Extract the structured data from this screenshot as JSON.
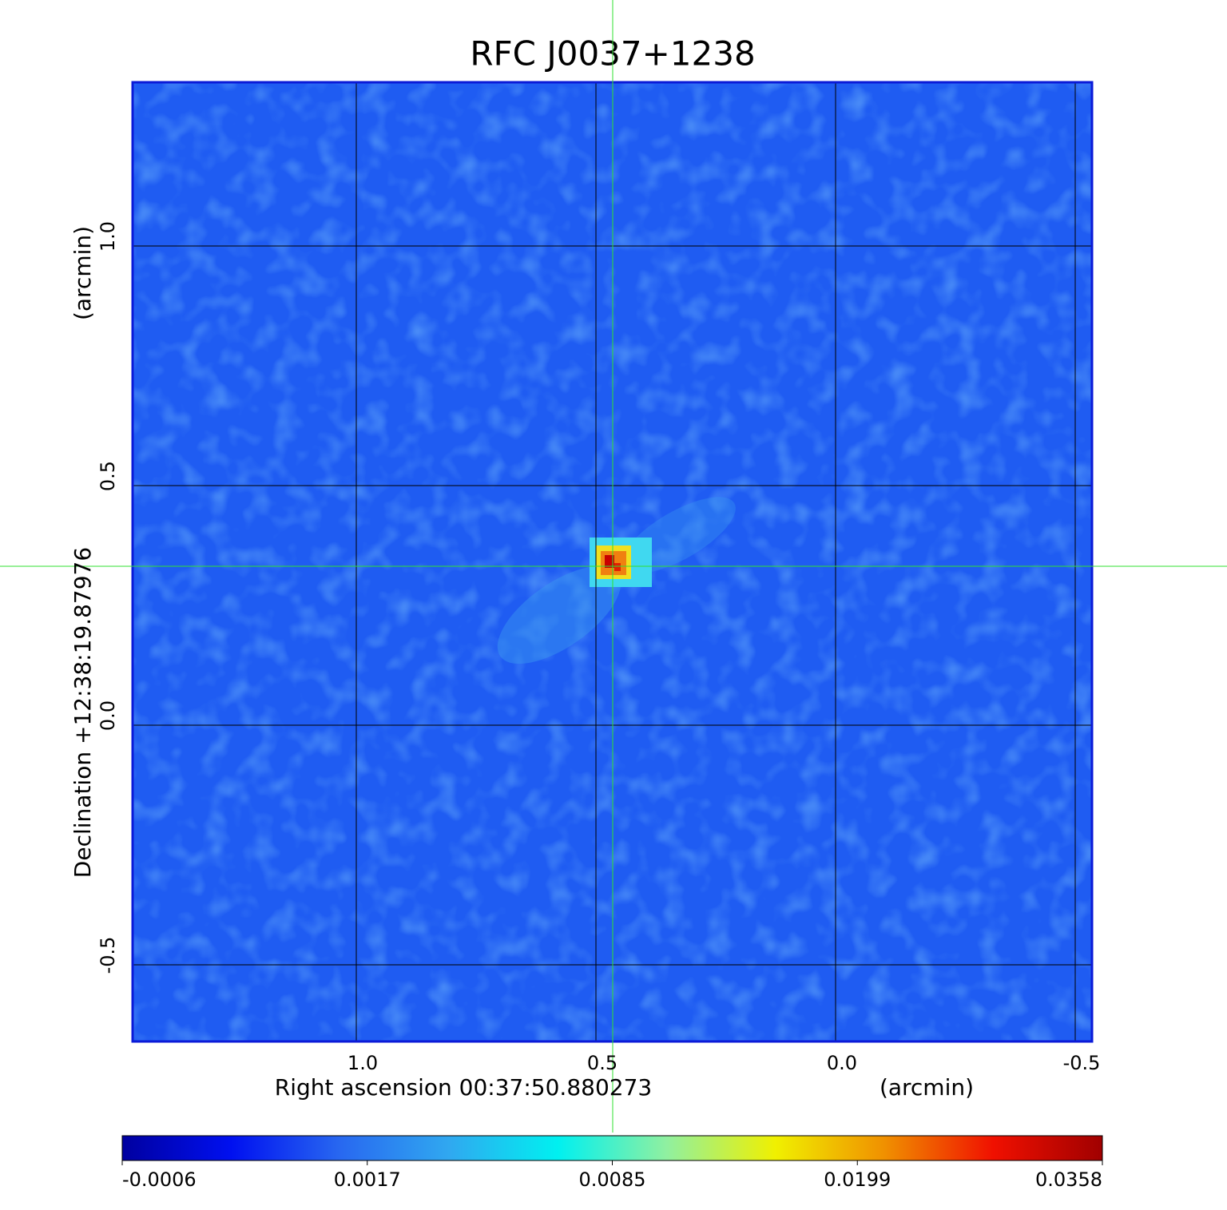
{
  "chart_data": {
    "type": "image",
    "title": "RFC J0037+1238",
    "title_color": "#1010d0",
    "xlabel": "Right ascension  00:37:50.880273",
    "xunit": "(arcmin)",
    "ylabel": "Declination  +12:38:19.87976",
    "yunit": "(arcmin)",
    "xlim": [
      1.4667,
      -0.535
    ],
    "ylim": [
      -0.66,
      1.3417
    ],
    "xticks": [
      {
        "value": 1,
        "label": "1.0"
      },
      0.5,
      {
        "value": 0,
        "label": "0.0"
      },
      -0.5
    ],
    "yticks": [
      {
        "value": 1,
        "label": "1.0"
      },
      0.5,
      {
        "value": 0,
        "label": "0.0"
      },
      -0.5
    ],
    "grid": true,
    "colorbar_ticks": [
      -0.0006,
      0.0017,
      0.0085,
      0.0199,
      0.0358
    ],
    "colormap": [
      "#0000a0",
      "#0010f0",
      "#2868f0",
      "#30a8f0",
      "#00f0f0",
      "#90f0a0",
      "#f0f000",
      "#f09000",
      "#f01000",
      "#a00000"
    ]
  }
}
